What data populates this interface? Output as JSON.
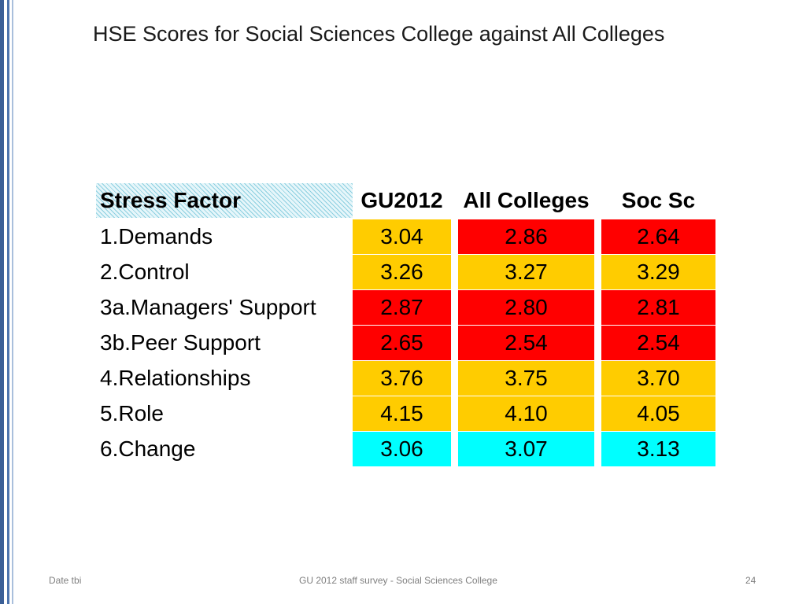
{
  "title": "HSE Scores for Social Sciences College against All Colleges",
  "table": {
    "headers": [
      "Stress Factor",
      "GU2012",
      "All Colleges",
      "Soc Sc"
    ],
    "rows": [
      {
        "label": "1.Demands",
        "gu2012": "3.04",
        "all_colleges": "2.86",
        "soc_sc": "2.64",
        "colors": [
          "#ffcc00",
          "#ff0000",
          "#ff0000"
        ]
      },
      {
        "label": "2.Control",
        "gu2012": "3.26",
        "all_colleges": "3.27",
        "soc_sc": "3.29",
        "colors": [
          "#ffcc00",
          "#ffcc00",
          "#ffcc00"
        ]
      },
      {
        "label": "3a.Managers' Support",
        "gu2012": "2.87",
        "all_colleges": "2.80",
        "soc_sc": "2.81",
        "colors": [
          "#ff0000",
          "#ff0000",
          "#ff0000"
        ]
      },
      {
        "label": "3b.Peer Support",
        "gu2012": "2.65",
        "all_colleges": "2.54",
        "soc_sc": "2.54",
        "colors": [
          "#ff0000",
          "#ff0000",
          "#ff0000"
        ]
      },
      {
        "label": "4.Relationships",
        "gu2012": "3.76",
        "all_colleges": "3.75",
        "soc_sc": "3.70",
        "colors": [
          "#ffcc00",
          "#ffcc00",
          "#ffcc00"
        ]
      },
      {
        "label": "5.Role",
        "gu2012": "4.15",
        "all_colleges": "4.10",
        "soc_sc": "4.05",
        "colors": [
          "#ffcc00",
          "#ffcc00",
          "#ffcc00"
        ]
      },
      {
        "label": "6.Change",
        "gu2012": "3.06",
        "all_colleges": "3.07",
        "soc_sc": "3.13",
        "colors": [
          "#00ffff",
          "#00ffff",
          "#00ffff"
        ]
      }
    ]
  },
  "footer": {
    "left": "Date tbi",
    "center": "GU 2012 staff survey -  Social Sciences College",
    "page": "24"
  }
}
